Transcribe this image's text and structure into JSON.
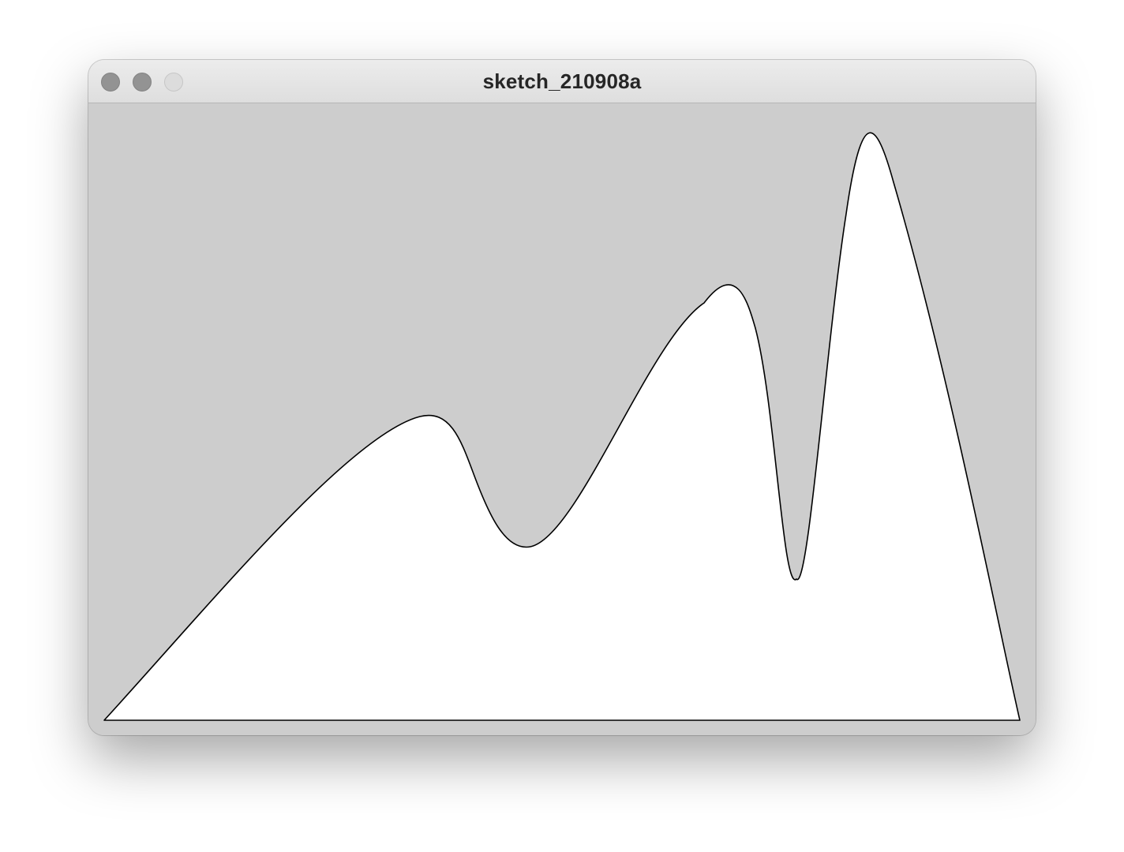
{
  "window": {
    "title": "sketch_210908a"
  },
  "colors": {
    "canvas_background": "#cdcdcd",
    "shape_fill": "#ffffff",
    "shape_stroke": "#000000"
  }
}
